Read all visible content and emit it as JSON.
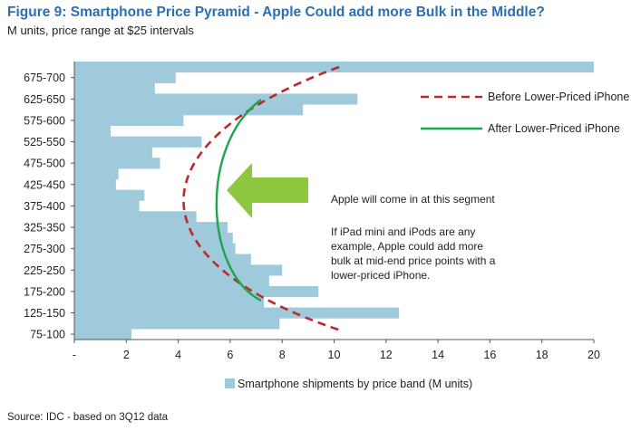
{
  "header": {
    "title": "Figure 9: Smartphone Price Pyramid - Apple Could add more Bulk in the Middle?",
    "subtitle": "M units, price range at $25 intervals"
  },
  "footer": {
    "source": "Source: IDC - based on 3Q12 data"
  },
  "colors": {
    "bar": "#9fcadb",
    "before_line": "#c0272d",
    "after_line": "#1aa64b",
    "arrow": "#8dc63f",
    "title": "#2a6fb5"
  },
  "annotations": {
    "segment": "Apple will come in at this segment",
    "body": [
      "If iPad mini and iPods are any",
      "example, Apple could add more",
      "bulk at mid-end price points with a",
      "lower-priced iPhone."
    ]
  },
  "chart_data": {
    "type": "bar",
    "orientation": "horizontal",
    "title": "Figure 9: Smartphone Price Pyramid - Apple Could add more Bulk in the Middle?",
    "subtitle": "M units, price range at $25 intervals",
    "xlabel": "",
    "ylabel": "",
    "xlim": [
      0,
      20
    ],
    "x_ticks": [
      0,
      2,
      4,
      6,
      8,
      10,
      12,
      14,
      16,
      18,
      20
    ],
    "x_tick_labels": [
      "-",
      "2",
      "4",
      "6",
      "8",
      "10",
      "12",
      "14",
      "16",
      "18",
      "20"
    ],
    "y_tick_labels": [
      "75-100",
      "125-150",
      "175-200",
      "225-250",
      "275-300",
      "325-350",
      "375-400",
      "425-450",
      "475-500",
      "525-550",
      "575-600",
      "625-650",
      "675-700"
    ],
    "categories": [
      "75-100",
      "100-125",
      "125-150",
      "150-175",
      "175-200",
      "200-225",
      "225-250",
      "250-275",
      "275-300",
      "300-325",
      "325-350",
      "350-375",
      "375-400",
      "400-425",
      "425-450",
      "450-475",
      "475-500",
      "500-525",
      "525-550",
      "550-575",
      "575-600",
      "600-625",
      "625-650",
      "650-675",
      "675-700",
      "700+"
    ],
    "series": [
      {
        "name": "Smartphone shipments by price band (M units)",
        "values": [
          2.2,
          7.9,
          12.5,
          7.3,
          9.4,
          7.5,
          8.0,
          6.8,
          6.2,
          6.1,
          5.9,
          4.7,
          2.5,
          2.7,
          1.6,
          1.7,
          3.3,
          3.0,
          4.9,
          1.4,
          4.2,
          8.8,
          10.9,
          3.1,
          3.9,
          20.0
        ]
      }
    ],
    "lines": [
      {
        "name": "Before Lower-Priced iPhone",
        "style": "dashed",
        "color": "#c0272d"
      },
      {
        "name": "After Lower-Priced iPhone",
        "style": "solid",
        "color": "#1aa64b"
      }
    ],
    "legend": {
      "position": "bottom",
      "label": "Smartphone shipments by price band (M units)"
    },
    "grid": false
  }
}
